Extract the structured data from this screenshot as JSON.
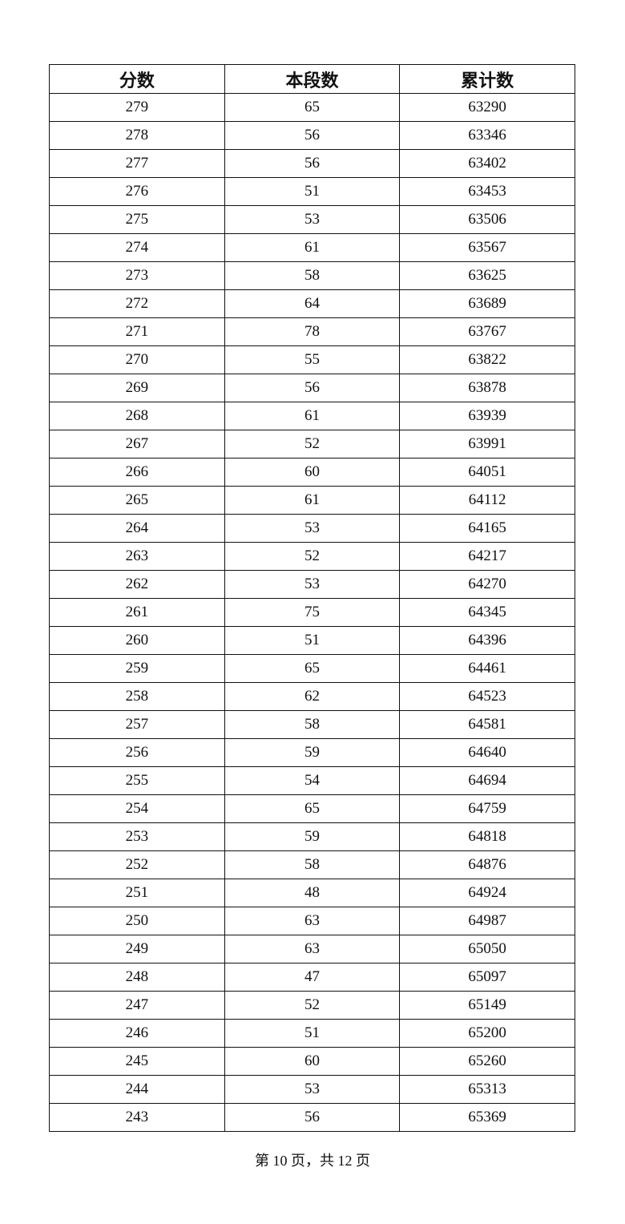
{
  "table": {
    "headers": [
      "分数",
      "本段数",
      "累计数"
    ],
    "rows": [
      [
        "279",
        "65",
        "63290"
      ],
      [
        "278",
        "56",
        "63346"
      ],
      [
        "277",
        "56",
        "63402"
      ],
      [
        "276",
        "51",
        "63453"
      ],
      [
        "275",
        "53",
        "63506"
      ],
      [
        "274",
        "61",
        "63567"
      ],
      [
        "273",
        "58",
        "63625"
      ],
      [
        "272",
        "64",
        "63689"
      ],
      [
        "271",
        "78",
        "63767"
      ],
      [
        "270",
        "55",
        "63822"
      ],
      [
        "269",
        "56",
        "63878"
      ],
      [
        "268",
        "61",
        "63939"
      ],
      [
        "267",
        "52",
        "63991"
      ],
      [
        "266",
        "60",
        "64051"
      ],
      [
        "265",
        "61",
        "64112"
      ],
      [
        "264",
        "53",
        "64165"
      ],
      [
        "263",
        "52",
        "64217"
      ],
      [
        "262",
        "53",
        "64270"
      ],
      [
        "261",
        "75",
        "64345"
      ],
      [
        "260",
        "51",
        "64396"
      ],
      [
        "259",
        "65",
        "64461"
      ],
      [
        "258",
        "62",
        "64523"
      ],
      [
        "257",
        "58",
        "64581"
      ],
      [
        "256",
        "59",
        "64640"
      ],
      [
        "255",
        "54",
        "64694"
      ],
      [
        "254",
        "65",
        "64759"
      ],
      [
        "253",
        "59",
        "64818"
      ],
      [
        "252",
        "58",
        "64876"
      ],
      [
        "251",
        "48",
        "64924"
      ],
      [
        "250",
        "63",
        "64987"
      ],
      [
        "249",
        "63",
        "65050"
      ],
      [
        "248",
        "47",
        "65097"
      ],
      [
        "247",
        "52",
        "65149"
      ],
      [
        "246",
        "51",
        "65200"
      ],
      [
        "245",
        "60",
        "65260"
      ],
      [
        "244",
        "53",
        "65313"
      ],
      [
        "243",
        "56",
        "65369"
      ]
    ]
  },
  "footer": "第 10 页，共 12 页"
}
